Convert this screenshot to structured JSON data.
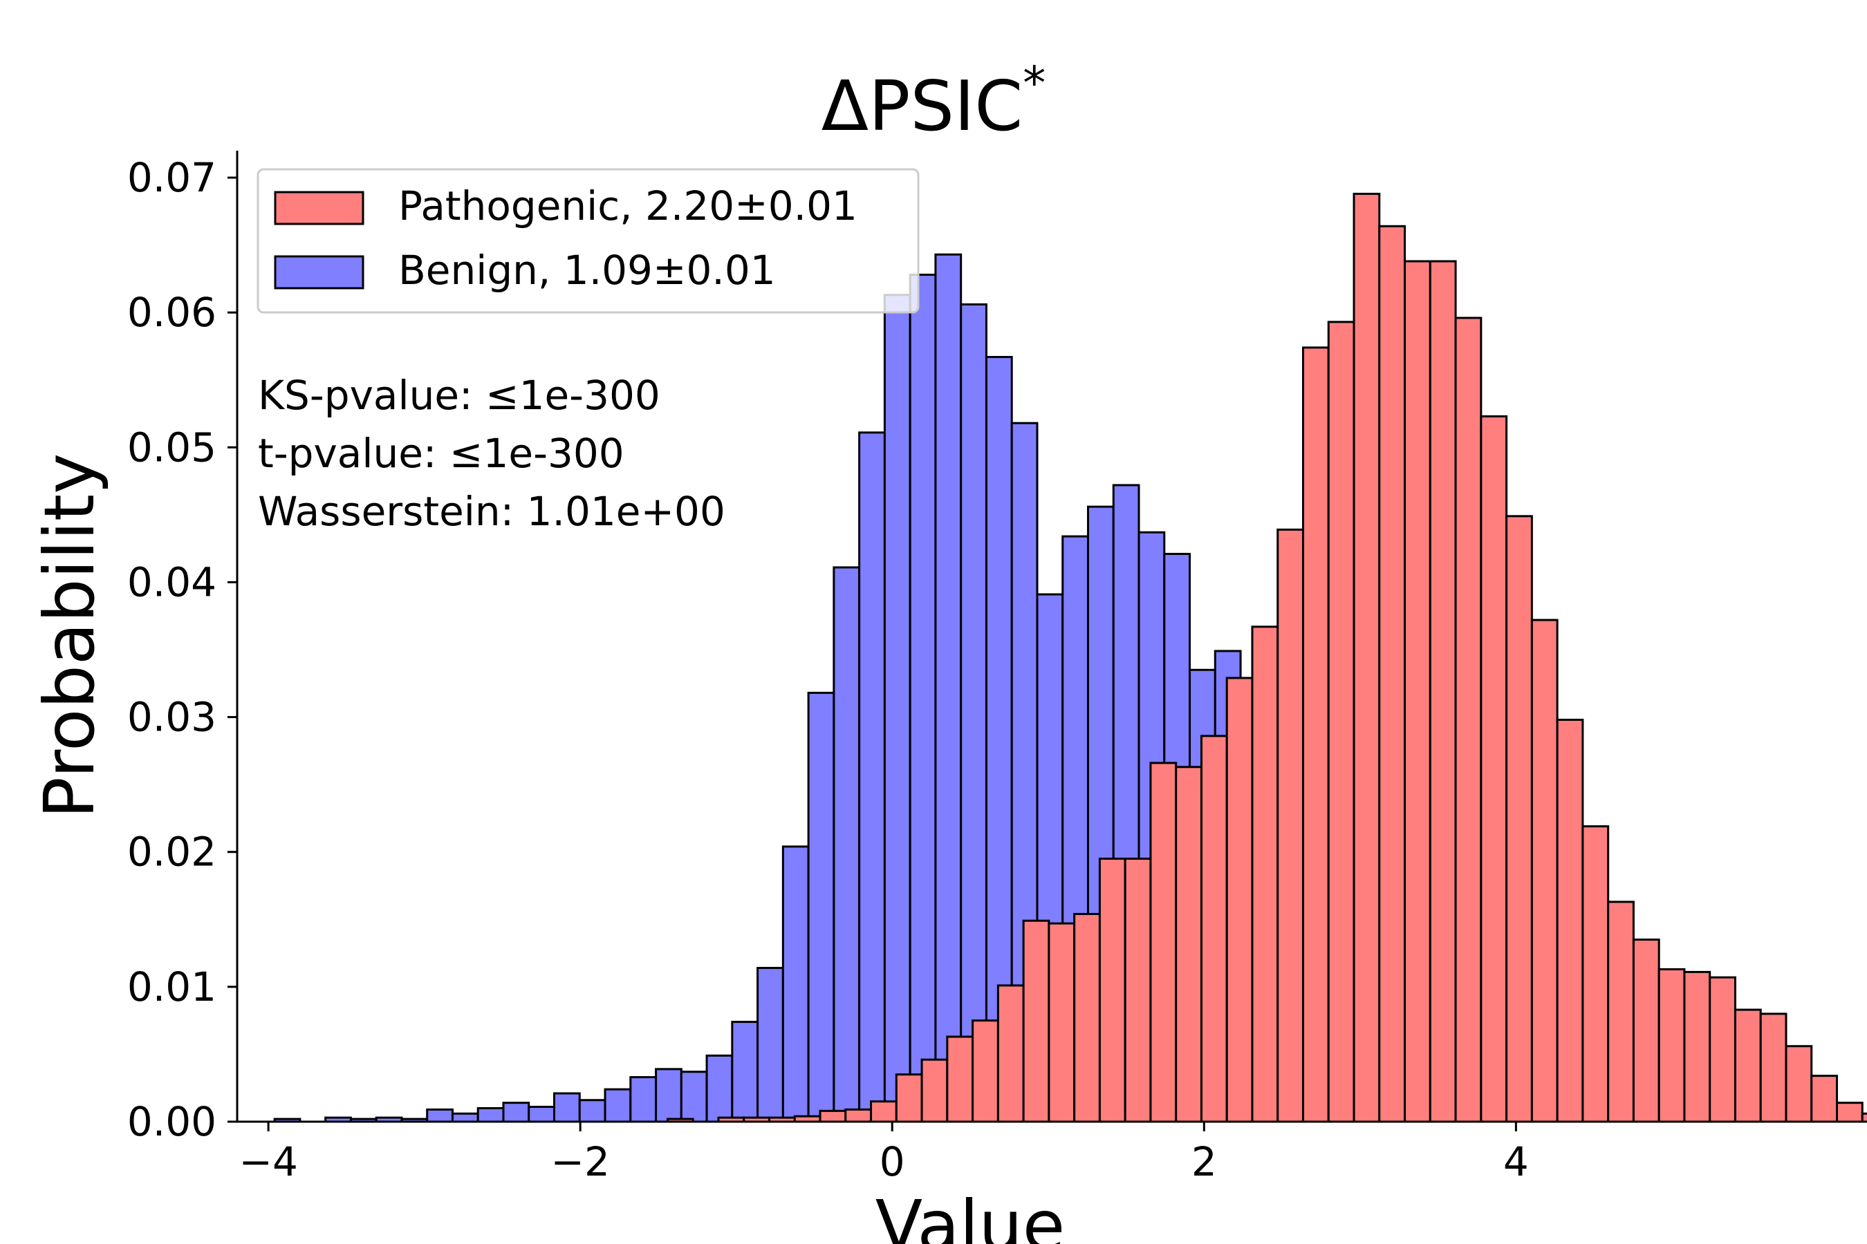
{
  "chart_data": {
    "type": "bar",
    "title": "ΔPSIC",
    "title_superscript": "*",
    "xlabel": "Value",
    "ylabel": "Probability",
    "xlim": [
      -4.2,
      5.2
    ],
    "ylim": [
      0,
      0.072
    ],
    "xticks": [
      {
        "value": -4,
        "label": "−4"
      },
      {
        "value": -2,
        "label": "−2"
      },
      {
        "value": 0,
        "label": "0"
      },
      {
        "value": 2,
        "label": "2"
      },
      {
        "value": 4,
        "label": "4"
      }
    ],
    "yticks": [
      {
        "value": 0,
        "label": "0.00"
      },
      {
        "value": 0.01,
        "label": "0.01"
      },
      {
        "value": 0.02,
        "label": "0.02"
      },
      {
        "value": 0.03,
        "label": "0.03"
      },
      {
        "value": 0.04,
        "label": "0.04"
      },
      {
        "value": 0.05,
        "label": "0.05"
      },
      {
        "value": 0.06,
        "label": "0.06"
      },
      {
        "value": 0.07,
        "label": "0.07"
      }
    ],
    "legend_position": "top-left",
    "annotations": [
      "KS-pvalue: ≤1e-300",
      "t-pvalue: ≤1e-300",
      "Wasserstein: 1.01e+00"
    ],
    "series": [
      {
        "name": "Benign, 1.09±0.01",
        "color": "#7f7fff",
        "bin_start": -3.96,
        "bin_width": 0.163,
        "values": [
          0.0002,
          0.0,
          0.0003,
          0.0002,
          0.0003,
          0.0002,
          0.0009,
          0.0006,
          0.001,
          0.0014,
          0.0011,
          0.0021,
          0.0016,
          0.0024,
          0.0033,
          0.0039,
          0.0037,
          0.0049,
          0.0074,
          0.0114,
          0.0204,
          0.0318,
          0.0411,
          0.0511,
          0.0613,
          0.0628,
          0.0643,
          0.0606,
          0.0567,
          0.0518,
          0.0391,
          0.0434,
          0.0456,
          0.0472,
          0.0437,
          0.0421,
          0.0335,
          0.0349,
          0.0293,
          0.0246,
          0.0196,
          0.0144,
          0.0103,
          0.0069,
          0.0069,
          0.007,
          0.0038,
          0.0019,
          0.0016
        ]
      },
      {
        "name": "Pathogenic, 2.20±0.01",
        "color": "#ff7f7f",
        "bin_start": -1.44,
        "bin_width": 0.163,
        "values": [
          0.0002,
          0.0,
          0.0003,
          0.0003,
          0.0003,
          0.0004,
          0.0008,
          0.0009,
          0.0015,
          0.0035,
          0.0046,
          0.0063,
          0.0075,
          0.0101,
          0.0149,
          0.0147,
          0.0154,
          0.0195,
          0.0195,
          0.0266,
          0.0263,
          0.0286,
          0.0329,
          0.0367,
          0.0439,
          0.0574,
          0.0593,
          0.0688,
          0.0664,
          0.0638,
          0.0638,
          0.0596,
          0.0523,
          0.0449,
          0.0372,
          0.0298,
          0.0219,
          0.0163,
          0.0135,
          0.0113,
          0.0111,
          0.0107,
          0.0083,
          0.008,
          0.0056,
          0.0034,
          0.0014,
          0.0006,
          0.0002
        ]
      }
    ]
  }
}
